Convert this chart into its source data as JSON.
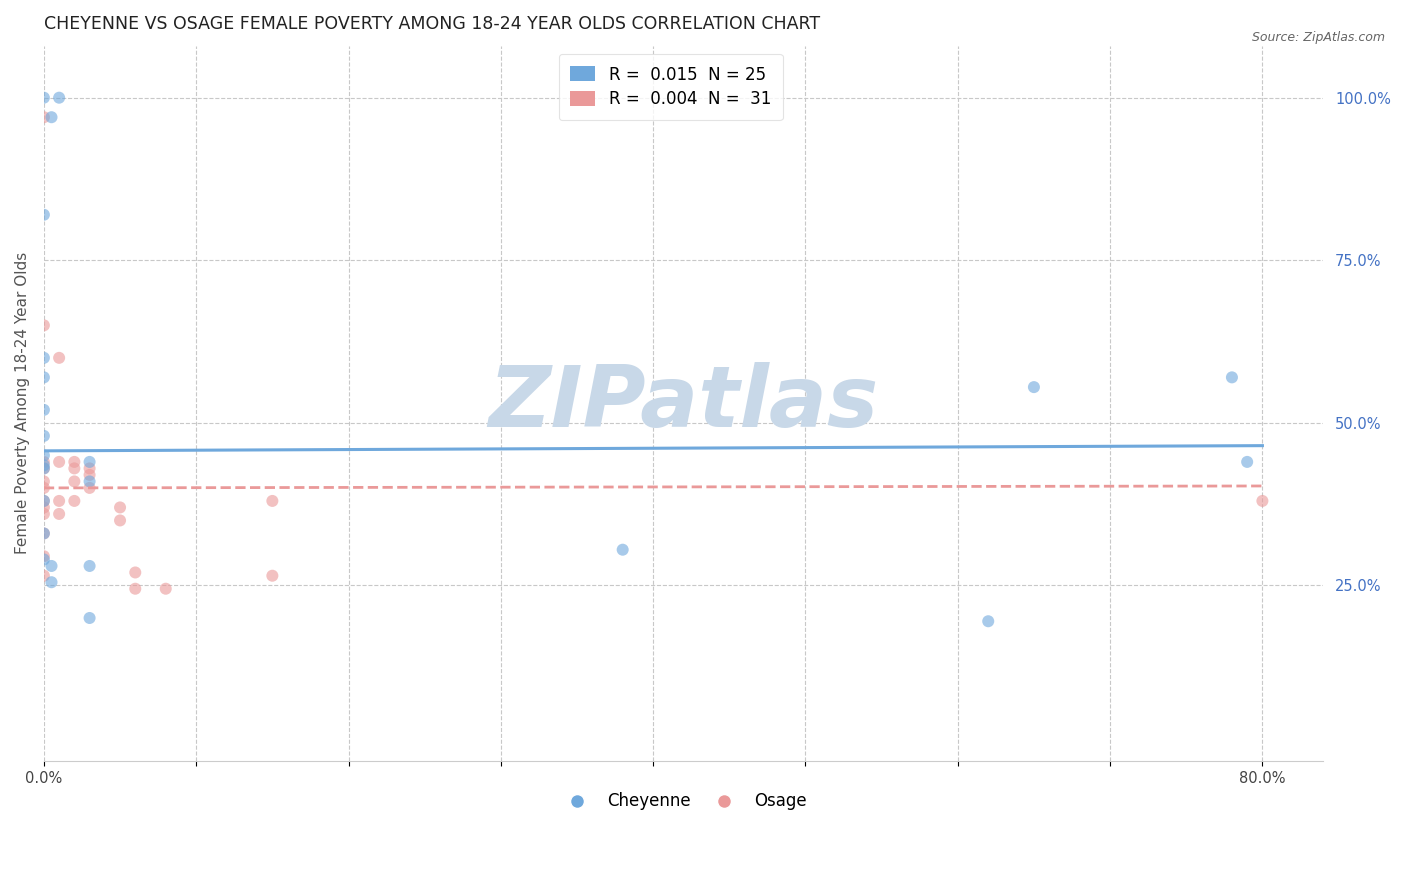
{
  "title": "CHEYENNE VS OSAGE FEMALE POVERTY AMONG 18-24 YEAR OLDS CORRELATION CHART",
  "source": "Source: ZipAtlas.com",
  "ylabel": "Female Poverty Among 18-24 Year Olds",
  "xlim": [
    0.0,
    0.84
  ],
  "ylim": [
    -0.02,
    1.08
  ],
  "xticks": [
    0.0,
    0.1,
    0.2,
    0.3,
    0.4,
    0.5,
    0.6,
    0.7,
    0.8
  ],
  "xtick_labels": [
    "0.0%",
    "",
    "",
    "",
    "",
    "",
    "",
    "",
    "80.0%"
  ],
  "ytick_labels_right": [
    "25.0%",
    "50.0%",
    "75.0%",
    "100.0%"
  ],
  "ytick_positions_right": [
    0.25,
    0.5,
    0.75,
    1.0
  ],
  "cheyenne_color": "#6fa8dc",
  "osage_color": "#ea9999",
  "cheyenne_R": 0.015,
  "cheyenne_N": 25,
  "osage_R": 0.004,
  "osage_N": 31,
  "cheyenne_scatter_x": [
    0.0,
    0.005,
    0.01,
    0.0,
    0.0,
    0.0,
    0.0,
    0.0,
    0.0,
    0.0,
    0.0,
    0.005,
    0.005,
    0.03,
    0.03,
    0.03,
    0.03,
    0.38,
    0.62,
    0.65,
    0.78,
    0.79,
    0.0,
    0.0,
    0.0
  ],
  "cheyenne_scatter_y": [
    1.0,
    0.97,
    1.0,
    0.82,
    0.6,
    0.57,
    0.52,
    0.48,
    0.45,
    0.435,
    0.43,
    0.28,
    0.255,
    0.44,
    0.41,
    0.28,
    0.2,
    0.305,
    0.195,
    0.555,
    0.57,
    0.44,
    0.38,
    0.33,
    0.29
  ],
  "osage_scatter_x": [
    0.0,
    0.0,
    0.0,
    0.0,
    0.0,
    0.0,
    0.0,
    0.0,
    0.0,
    0.01,
    0.01,
    0.01,
    0.01,
    0.02,
    0.02,
    0.02,
    0.02,
    0.03,
    0.03,
    0.03,
    0.05,
    0.05,
    0.06,
    0.06,
    0.08,
    0.15,
    0.15,
    0.8,
    0.0,
    0.0,
    0.0
  ],
  "osage_scatter_y": [
    0.97,
    0.65,
    0.44,
    0.43,
    0.41,
    0.4,
    0.38,
    0.37,
    0.36,
    0.6,
    0.44,
    0.38,
    0.36,
    0.44,
    0.43,
    0.41,
    0.38,
    0.43,
    0.42,
    0.4,
    0.37,
    0.35,
    0.27,
    0.245,
    0.245,
    0.38,
    0.265,
    0.38,
    0.33,
    0.295,
    0.265
  ],
  "background_color": "#ffffff",
  "grid_color": "#c8c8c8",
  "watermark_text": "ZIPatlas",
  "watermark_color": "#c8d8e8",
  "cheyenne_trend_x0": 0.0,
  "cheyenne_trend_y0": 0.457,
  "cheyenne_trend_x1": 0.8,
  "cheyenne_trend_y1": 0.465,
  "osage_trend_x0": 0.0,
  "osage_trend_y0": 0.4,
  "osage_trend_x1": 0.8,
  "osage_trend_y1": 0.403,
  "marker_size": 75,
  "marker_alpha": 0.6,
  "title_fontsize": 12.5,
  "axis_label_fontsize": 11,
  "tick_fontsize": 10.5,
  "legend_fontsize": 12
}
